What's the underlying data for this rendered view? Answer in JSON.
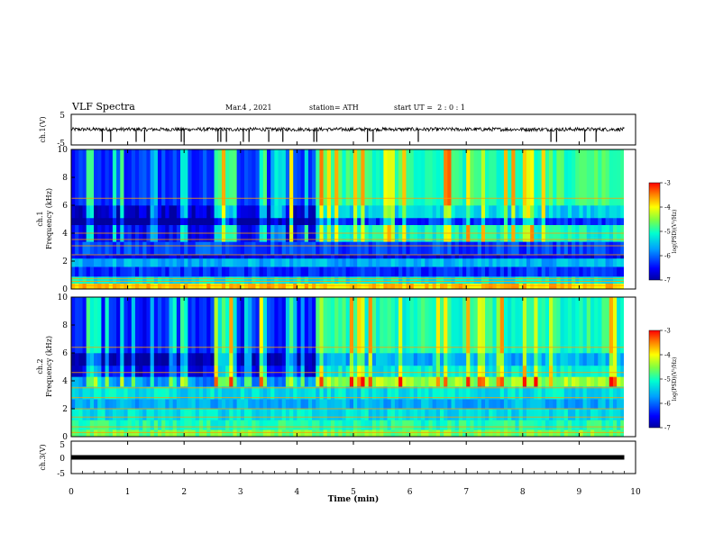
{
  "header": {
    "title": "VLF Spectra",
    "date": "Mar.4 , 2021",
    "station": "station= ATH",
    "start": "start UT =  2 : 0 : 1"
  },
  "chart_data": [
    {
      "id": "ch1-volts",
      "type": "line",
      "ylabel": "ch.1(V)",
      "ylim": [
        -5,
        5
      ],
      "yticks": [
        "5",
        "-5"
      ],
      "xlim": [
        0,
        10
      ],
      "baseline_value": 0.1,
      "noise_amplitude": 0.6,
      "spike_times": [
        0.55,
        0.7,
        1.15,
        1.3,
        1.95,
        2.0,
        2.6,
        2.65,
        2.75,
        3.05,
        3.15,
        3.5,
        3.75,
        4.3,
        4.35,
        5.25,
        5.35,
        6.15,
        8.5,
        8.6,
        9.1,
        9.3
      ]
    },
    {
      "id": "ch1-spectrogram",
      "type": "heatmap",
      "ylabel_top": "ch.1",
      "ylabel": "Frequency (kHz)",
      "xlim": [
        0,
        10
      ],
      "ylim": [
        0,
        10
      ],
      "yticks": [
        "0",
        "2",
        "4",
        "6",
        "8",
        "10"
      ],
      "colorbar": {
        "label": "log(PSD)(V²/Hz)",
        "ticks": [
          "-3",
          "-4",
          "-5",
          "-6",
          "-7"
        ],
        "range": [
          -7,
          -3
        ]
      },
      "quiet_intervals_min": [
        [
          0.0,
          0.25
        ],
        [
          0.4,
          0.85
        ],
        [
          0.95,
          1.3
        ],
        [
          1.35,
          1.95
        ],
        [
          2.1,
          2.55
        ],
        [
          2.95,
          3.35
        ],
        [
          3.5,
          3.85
        ],
        [
          3.95,
          4.35
        ]
      ],
      "bands_khz": [
        {
          "f": [
            0.0,
            0.4
          ],
          "level": -3.8
        },
        {
          "f": [
            0.4,
            0.9
          ],
          "level": -5.2
        },
        {
          "f": [
            0.9,
            1.6
          ],
          "level": -6.3
        },
        {
          "f": [
            1.6,
            2.2
          ],
          "level": -5.6
        },
        {
          "f": [
            2.2,
            2.5
          ],
          "level": -6.6
        },
        {
          "f": [
            2.5,
            3.4
          ],
          "level": -6.2
        },
        {
          "f": [
            3.4,
            4.6
          ],
          "level": -5.1
        },
        {
          "f": [
            4.6,
            5.1
          ],
          "level": -6.3
        },
        {
          "f": [
            5.1,
            6.0
          ],
          "level": -5.4
        },
        {
          "f": [
            6.0,
            10.0
          ],
          "level": -4.9
        }
      ],
      "lines_khz": [
        0.25,
        0.55,
        0.75,
        2.45,
        3.1,
        3.55,
        4.0,
        6.5
      ]
    },
    {
      "id": "ch2-spectrogram",
      "type": "heatmap",
      "ylabel_top": "ch.2",
      "ylabel": "Frequency (kHz)",
      "xlim": [
        0,
        10
      ],
      "ylim": [
        0,
        10
      ],
      "yticks": [
        "0",
        "2",
        "4",
        "6",
        "8",
        "10"
      ],
      "colorbar": {
        "label": "log(PSD)(V²/Hz)",
        "ticks": [
          "-3",
          "-4",
          "-5",
          "-6",
          "-7"
        ],
        "range": [
          -7,
          -3
        ]
      },
      "quiet_intervals_min": [
        [
          0.0,
          0.25
        ],
        [
          0.4,
          0.85
        ],
        [
          0.95,
          1.3
        ],
        [
          1.35,
          1.95
        ],
        [
          2.1,
          2.55
        ],
        [
          2.95,
          3.35
        ],
        [
          3.5,
          3.85
        ],
        [
          3.95,
          4.35
        ]
      ],
      "bands_khz": [
        {
          "f": [
            0.0,
            0.5
          ],
          "level": -4.6
        },
        {
          "f": [
            0.5,
            1.2
          ],
          "level": -5.0
        },
        {
          "f": [
            1.2,
            2.0
          ],
          "level": -5.3
        },
        {
          "f": [
            2.0,
            2.7
          ],
          "level": -5.6
        },
        {
          "f": [
            2.7,
            3.6
          ],
          "level": -5.3
        },
        {
          "f": [
            3.6,
            4.3
          ],
          "level": -4.4
        },
        {
          "f": [
            4.3,
            5.1
          ],
          "level": -5.2
        },
        {
          "f": [
            5.1,
            6.0
          ],
          "level": -5.6
        },
        {
          "f": [
            6.0,
            10.0
          ],
          "level": -5.0
        }
      ],
      "lines_khz": [
        0.3,
        0.7,
        1.4,
        2.0,
        2.8,
        3.5,
        4.6,
        6.4
      ]
    },
    {
      "id": "ch3-volts",
      "type": "line",
      "ylabel": "ch.3(V)",
      "ylim": [
        -5,
        5
      ],
      "yticks": [
        "5",
        "0",
        "-5"
      ],
      "xlim": [
        0,
        10
      ],
      "xticks": [
        "0",
        "1",
        "2",
        "3",
        "4",
        "5",
        "6",
        "7",
        "8",
        "9",
        "10"
      ],
      "xlabel": "Time (min)",
      "baseline_value": 0.0,
      "data_end_min": 9.8
    }
  ]
}
